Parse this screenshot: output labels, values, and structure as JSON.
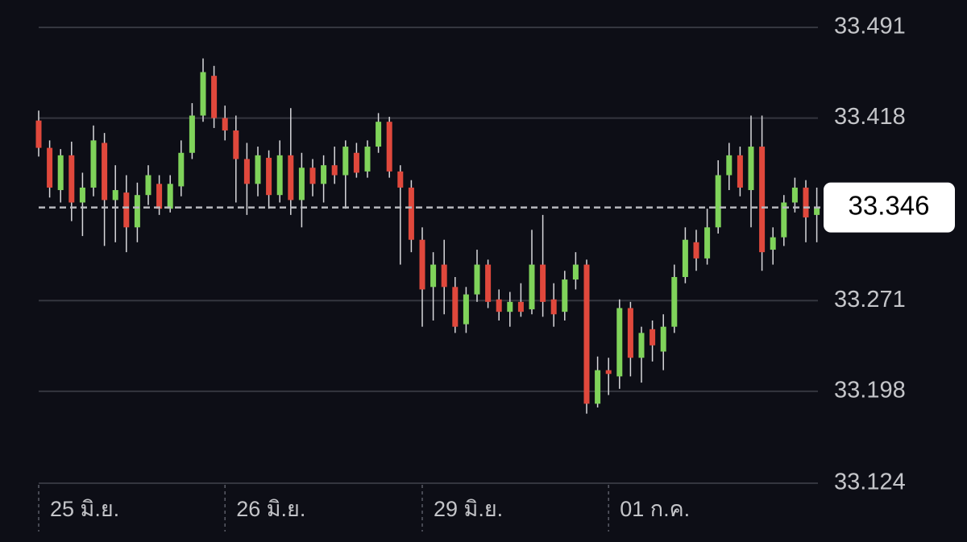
{
  "chart_data": {
    "type": "candlestick",
    "categories": [
      "25 มิ.ย.",
      null,
      null,
      null,
      null,
      null,
      null,
      null,
      null,
      null,
      null,
      null,
      null,
      null,
      null,
      null,
      null,
      "26 มิ.ย.",
      null,
      null,
      null,
      null,
      null,
      null,
      null,
      null,
      null,
      null,
      null,
      null,
      null,
      null,
      null,
      null,
      null,
      "29 มิ.ย.",
      null,
      null,
      null,
      null,
      null,
      null,
      null,
      null,
      null,
      null,
      null,
      null,
      null,
      null,
      null,
      null,
      "01 ก.ค.",
      null,
      null,
      null,
      null,
      null,
      null,
      null,
      null,
      null,
      null,
      null,
      null,
      null,
      null,
      null,
      null,
      null,
      null,
      null
    ],
    "open": [
      33.416,
      33.394,
      33.36,
      33.388,
      33.35,
      33.362,
      33.398,
      33.352,
      33.358,
      33.33,
      33.356,
      33.365,
      33.345,
      33.363,
      33.39,
      33.42,
      33.452,
      33.418,
      33.408,
      33.385,
      33.365,
      33.386,
      33.356,
      33.388,
      33.352,
      33.378,
      33.365,
      33.38,
      33.372,
      33.39,
      33.375,
      33.395,
      33.415,
      33.375,
      33.362,
      33.32,
      33.282,
      33.3,
      33.282,
      33.252,
      33.276,
      33.3,
      33.272,
      33.262,
      33.27,
      33.264,
      33.3,
      33.272,
      33.262,
      33.288,
      33.3,
      33.188,
      33.215,
      33.21,
      33.265,
      33.225,
      33.248,
      33.23,
      33.25,
      33.29,
      33.318,
      33.305,
      33.33,
      33.372,
      33.388,
      33.36,
      33.395,
      33.312,
      33.322,
      33.35,
      33.362,
      33.34
    ],
    "high": [
      33.424,
      33.4,
      33.393,
      33.399,
      33.374,
      33.412,
      33.406,
      33.38,
      33.372,
      33.366,
      33.38,
      33.372,
      33.372,
      33.4,
      33.43,
      33.466,
      33.46,
      33.428,
      33.42,
      33.398,
      33.395,
      33.392,
      33.4,
      33.426,
      33.39,
      33.385,
      33.388,
      33.395,
      33.4,
      33.398,
      33.4,
      33.422,
      33.419,
      33.38,
      33.368,
      33.33,
      33.31,
      33.32,
      33.29,
      33.282,
      33.312,
      33.304,
      33.28,
      33.278,
      33.285,
      33.328,
      33.34,
      33.285,
      33.295,
      33.31,
      33.304,
      33.226,
      33.225,
      33.272,
      33.27,
      33.25,
      33.255,
      33.26,
      33.3,
      33.33,
      33.328,
      33.345,
      33.384,
      33.398,
      33.395,
      33.42,
      33.42,
      33.33,
      33.356,
      33.37,
      33.368,
      33.362
    ],
    "low": [
      33.387,
      33.354,
      33.35,
      33.335,
      33.323,
      33.355,
      33.315,
      33.318,
      33.31,
      33.318,
      33.348,
      33.34,
      33.342,
      33.355,
      33.385,
      33.415,
      33.41,
      33.4,
      33.35,
      33.34,
      33.355,
      33.345,
      33.35,
      33.34,
      33.33,
      33.355,
      33.35,
      33.365,
      33.345,
      33.37,
      33.37,
      33.39,
      33.37,
      33.3,
      33.31,
      33.25,
      33.255,
      33.26,
      33.245,
      33.245,
      33.27,
      33.265,
      33.255,
      33.25,
      33.258,
      33.26,
      33.258,
      33.25,
      33.255,
      33.28,
      33.18,
      33.185,
      33.195,
      33.2,
      33.21,
      33.205,
      33.222,
      33.215,
      33.245,
      33.285,
      33.295,
      33.3,
      33.325,
      33.36,
      33.355,
      33.33,
      33.295,
      33.3,
      33.315,
      33.342,
      33.318,
      33.318
    ],
    "close": [
      33.394,
      33.362,
      33.388,
      33.35,
      33.362,
      33.4,
      33.352,
      33.36,
      33.33,
      33.356,
      33.372,
      33.345,
      33.365,
      33.39,
      33.42,
      33.455,
      33.418,
      33.408,
      33.385,
      33.365,
      33.388,
      33.356,
      33.388,
      33.352,
      33.378,
      33.365,
      33.38,
      33.372,
      33.395,
      33.374,
      33.395,
      33.415,
      33.375,
      33.362,
      33.32,
      33.28,
      33.3,
      33.282,
      33.25,
      33.276,
      33.3,
      33.27,
      33.262,
      33.27,
      33.262,
      33.3,
      33.27,
      33.26,
      33.288,
      33.3,
      33.188,
      33.215,
      33.212,
      33.265,
      33.225,
      33.245,
      33.235,
      33.25,
      33.29,
      33.32,
      33.305,
      33.33,
      33.372,
      33.388,
      33.362,
      33.395,
      33.31,
      33.322,
      33.35,
      33.362,
      33.338,
      33.346
    ],
    "up_color": "#7fd35a",
    "down_color": "#e0483c",
    "ylim": [
      33.124,
      33.491
    ],
    "yticks": [
      33.491,
      33.418,
      33.271,
      33.198,
      33.124
    ],
    "grid": true,
    "last_price": 33.346
  }
}
